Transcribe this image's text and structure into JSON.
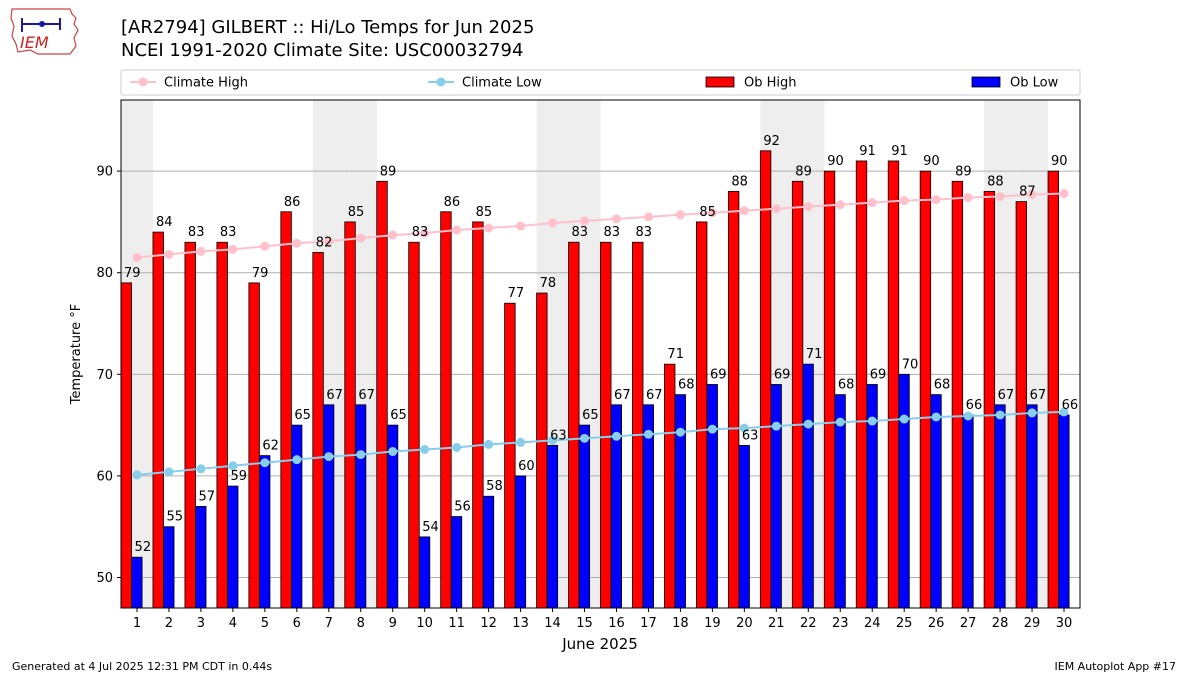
{
  "header": {
    "title_line1": "[AR2794] GILBERT :: Hi/Lo Temps for Jun 2025",
    "title_line2": "NCEI 1991-2020 Climate Site: USC00032794"
  },
  "logo": {
    "text": "IEM",
    "color": "#cc2222"
  },
  "footer": {
    "left": "Generated at 4 Jul 2025 12:31 PM CDT in 0.44s",
    "right": "IEM Autoplot App #17"
  },
  "chart_data": {
    "type": "bar",
    "xlabel": "June 2025",
    "ylabel": "Temperature °F",
    "ylim": [
      47,
      97
    ],
    "yticks": [
      50,
      60,
      70,
      80,
      90
    ],
    "categories": [
      "1",
      "2",
      "3",
      "4",
      "5",
      "6",
      "7",
      "8",
      "9",
      "10",
      "11",
      "12",
      "13",
      "14",
      "15",
      "16",
      "17",
      "18",
      "19",
      "20",
      "21",
      "22",
      "23",
      "24",
      "25",
      "26",
      "27",
      "28",
      "29",
      "30"
    ],
    "grid": "horizontal",
    "legend_placement": "top",
    "weekend_shading": [
      1,
      7,
      8,
      14,
      15,
      21,
      22,
      28,
      29
    ],
    "series": [
      {
        "name": "Climate High",
        "kind": "line",
        "color": "#ffc0cb",
        "values": [
          81.5,
          81.8,
          82.1,
          82.3,
          82.6,
          82.9,
          83.1,
          83.4,
          83.7,
          83.9,
          84.2,
          84.4,
          84.6,
          84.9,
          85.1,
          85.3,
          85.5,
          85.7,
          85.9,
          86.1,
          86.3,
          86.5,
          86.7,
          86.9,
          87.1,
          87.2,
          87.4,
          87.5,
          87.7,
          87.8
        ]
      },
      {
        "name": "Climate Low",
        "kind": "line",
        "color": "#87ceeb",
        "values": [
          60.1,
          60.4,
          60.7,
          61.0,
          61.3,
          61.6,
          61.9,
          62.1,
          62.4,
          62.6,
          62.8,
          63.1,
          63.3,
          63.5,
          63.7,
          63.9,
          64.1,
          64.3,
          64.6,
          64.7,
          64.9,
          65.1,
          65.3,
          65.4,
          65.6,
          65.8,
          65.9,
          66.0,
          66.2,
          66.3
        ]
      },
      {
        "name": "Ob High",
        "kind": "bar",
        "color": "#ff0000",
        "values": [
          79,
          84,
          83,
          83,
          79,
          86,
          82,
          85,
          89,
          83,
          86,
          85,
          77,
          78,
          83,
          83,
          83,
          71,
          85,
          88,
          92,
          89,
          90,
          91,
          91,
          90,
          89,
          88,
          87,
          90
        ]
      },
      {
        "name": "Ob Low",
        "kind": "bar",
        "color": "#0000ff",
        "values": [
          52,
          55,
          57,
          59,
          62,
          65,
          67,
          67,
          65,
          54,
          56,
          58,
          60,
          63,
          65,
          67,
          67,
          68,
          69,
          63,
          69,
          71,
          68,
          69,
          70,
          68,
          66,
          67,
          67,
          66
        ]
      }
    ]
  }
}
